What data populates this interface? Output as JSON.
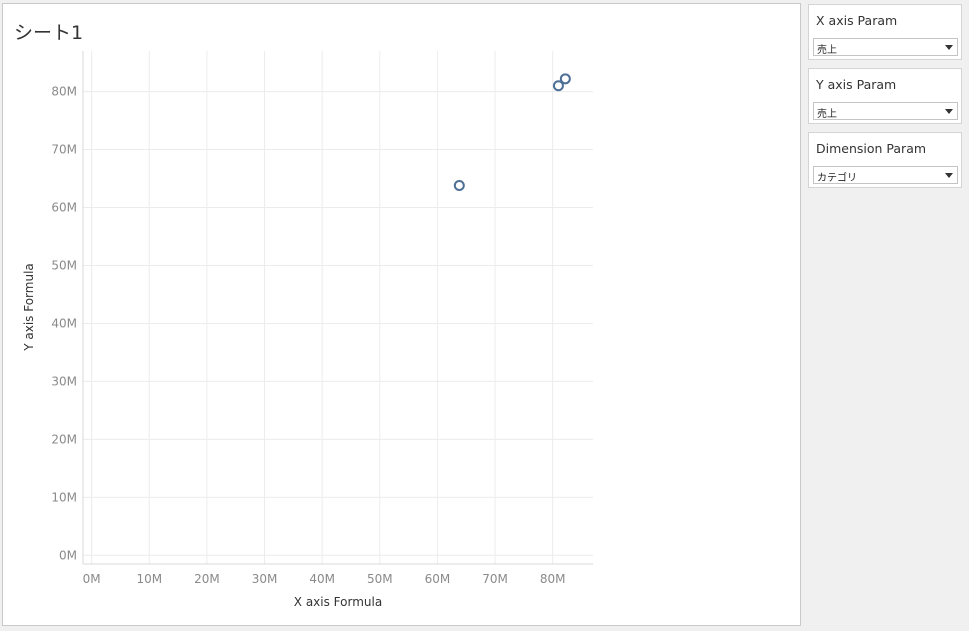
{
  "sheet": {
    "title": "シート1"
  },
  "chart_data": {
    "type": "scatter",
    "xlabel": "X axis Formula",
    "ylabel": "Y axis Formula",
    "xlim": [
      -1.5,
      87
    ],
    "ylim": [
      -1.5,
      87
    ],
    "x_ticks": [
      {
        "value": 0,
        "label": "0M"
      },
      {
        "value": 10,
        "label": "10M"
      },
      {
        "value": 20,
        "label": "20M"
      },
      {
        "value": 30,
        "label": "30M"
      },
      {
        "value": 40,
        "label": "40M"
      },
      {
        "value": 50,
        "label": "50M"
      },
      {
        "value": 60,
        "label": "60M"
      },
      {
        "value": 70,
        "label": "70M"
      },
      {
        "value": 80,
        "label": "80M"
      }
    ],
    "y_ticks": [
      {
        "value": 0,
        "label": "0M"
      },
      {
        "value": 10,
        "label": "10M"
      },
      {
        "value": 20,
        "label": "20M"
      },
      {
        "value": 30,
        "label": "30M"
      },
      {
        "value": 40,
        "label": "40M"
      },
      {
        "value": 50,
        "label": "50M"
      },
      {
        "value": 60,
        "label": "60M"
      },
      {
        "value": 70,
        "label": "70M"
      },
      {
        "value": 80,
        "label": "80M"
      }
    ],
    "points": [
      {
        "x": 63.8,
        "y": 63.8
      },
      {
        "x": 81.0,
        "y": 81.0
      },
      {
        "x": 82.2,
        "y": 82.2
      }
    ],
    "grid": true,
    "marker": "hollow-circle",
    "color": "#4e6f95"
  },
  "params": [
    {
      "title": "X axis Param",
      "value": "売上"
    },
    {
      "title": "Y axis Param",
      "value": "売上"
    },
    {
      "title": "Dimension Param",
      "value": "カテゴリ"
    }
  ]
}
